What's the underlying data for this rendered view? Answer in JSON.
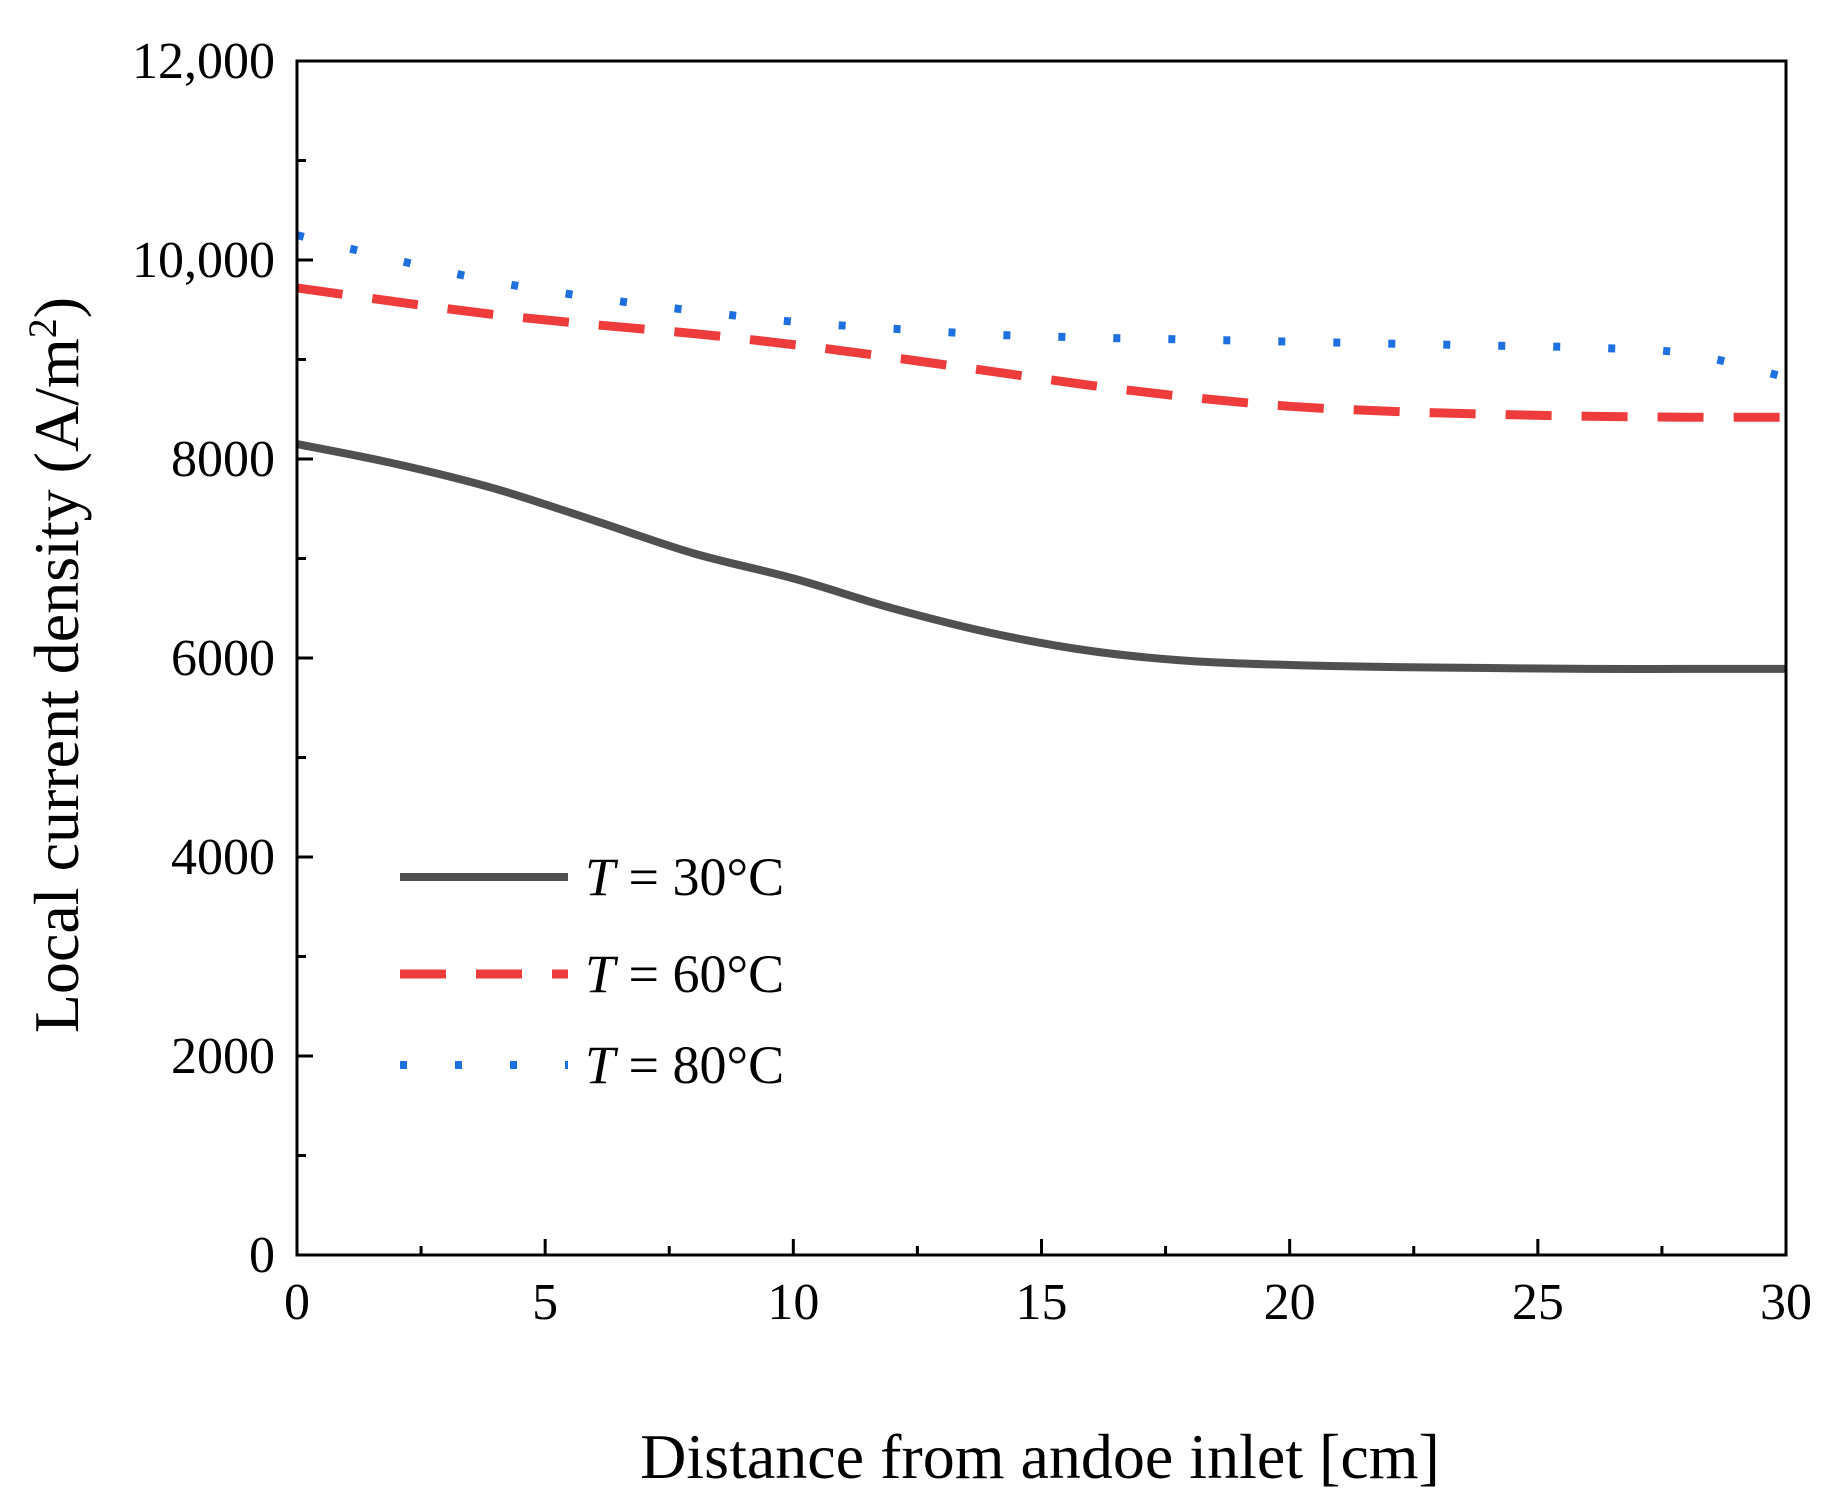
{
  "chart_data": {
    "type": "line",
    "title": "",
    "xlabel": "Distance from andoe inlet [cm]",
    "ylabel": {
      "prefix": "Local current density (A/m",
      "superscript": "2",
      "suffix": ")"
    },
    "xlim": [
      0,
      30
    ],
    "ylim": [
      0,
      12000
    ],
    "x_ticks": [
      0,
      5,
      10,
      15,
      20,
      25,
      30
    ],
    "x_tick_labels": [
      "0",
      "5",
      "10",
      "15",
      "20",
      "25",
      "30"
    ],
    "y_ticks": [
      0,
      2000,
      4000,
      6000,
      8000,
      10000,
      12000
    ],
    "y_tick_labels": [
      "0",
      "2000",
      "4000",
      "6000",
      "8000",
      "10,000",
      "12,000"
    ],
    "x_minor_ticks": [
      2.5,
      7.5,
      12.5,
      17.5,
      22.5,
      27.5
    ],
    "y_minor_ticks": [
      1000,
      3000,
      5000,
      7000,
      9000,
      11000
    ],
    "grid": false,
    "legend_position": "lower-left",
    "series": [
      {
        "name": "T = 30°C",
        "legend_var": "T",
        "legend_rest": " = 30°C",
        "color": "#505050",
        "style": "solid",
        "x": [
          0,
          2,
          4,
          6,
          8,
          10,
          12,
          14,
          16,
          18,
          20,
          22,
          24,
          26,
          28,
          30
        ],
        "values": [
          8150,
          7950,
          7700,
          7380,
          7050,
          6800,
          6500,
          6250,
          6070,
          5970,
          5930,
          5910,
          5900,
          5890,
          5890,
          5890
        ]
      },
      {
        "name": "T = 60°C",
        "legend_var": "T",
        "legend_rest": " = 60°C",
        "color": "#EE3B3B",
        "style": "dashed",
        "x": [
          0,
          2,
          4,
          6,
          8,
          10,
          12,
          14,
          16,
          18,
          20,
          22,
          24,
          26,
          28,
          30
        ],
        "values": [
          9720,
          9580,
          9450,
          9350,
          9260,
          9150,
          9020,
          8880,
          8740,
          8620,
          8530,
          8480,
          8450,
          8430,
          8420,
          8420
        ]
      },
      {
        "name": "T = 80°C",
        "legend_var": "T",
        "legend_rest": " = 80°C",
        "color": "#1E6FE0",
        "style": "dotted",
        "x": [
          0,
          2,
          4,
          6,
          8,
          10,
          12,
          14,
          16,
          18,
          20,
          22,
          24,
          26,
          28,
          30
        ],
        "values": [
          10250,
          10000,
          9780,
          9620,
          9490,
          9380,
          9310,
          9250,
          9220,
          9200,
          9180,
          9160,
          9140,
          9120,
          9060,
          8820
        ]
      }
    ]
  }
}
